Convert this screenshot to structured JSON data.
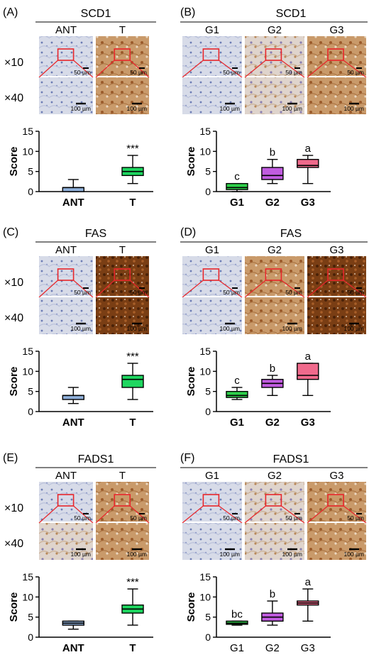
{
  "scale_bar_small": "50 µm",
  "scale_bar_large": "100 µm",
  "row_labels": [
    "×10",
    "×40"
  ],
  "y_axis_label": "Score",
  "colors": {
    "ant": "#8fb0da",
    "t": "#1ed760",
    "g1": "#2fd24b",
    "g2": "#c15ce0",
    "g3": "#f06a8c",
    "roi": "#e8262b",
    "hem": "#c9d1e6",
    "dab": "#b5713a"
  },
  "panels": [
    {
      "label": "(A)",
      "title": "SCD1",
      "groups": [
        "ANT",
        "T"
      ],
      "tiles": [
        [
          "hem",
          "dab"
        ],
        [
          "hem",
          "dab"
        ]
      ],
      "chart_data": {
        "type": "box",
        "categories": [
          "ANT",
          "T"
        ],
        "ylim": [
          0,
          15
        ],
        "yticks": [
          0,
          5,
          10,
          15
        ],
        "ylabel": "Score",
        "boxes": [
          {
            "min": 0,
            "q1": 0,
            "median": 1,
            "q3": 1,
            "max": 3,
            "color": "#8fb0da"
          },
          {
            "min": 2,
            "q1": 4,
            "median": 5,
            "q3": 6,
            "max": 9,
            "color": "#1ed760"
          }
        ],
        "annotations": [
          "",
          "***"
        ]
      }
    },
    {
      "label": "(B)",
      "title": "SCD1",
      "groups": [
        "G1",
        "G2",
        "G3"
      ],
      "tiles": [
        [
          "hem",
          "mix",
          "dab"
        ],
        [
          "hem",
          "mix",
          "dab"
        ]
      ],
      "chart_data": {
        "type": "box",
        "categories": [
          "G1",
          "G2",
          "G3"
        ],
        "ylim": [
          0,
          15
        ],
        "yticks": [
          0,
          5,
          10,
          15
        ],
        "ylabel": "Score",
        "boxes": [
          {
            "min": 0,
            "q1": 0.5,
            "median": 1,
            "q3": 2,
            "max": 2,
            "color": "#2fd24b"
          },
          {
            "min": 2,
            "q1": 3,
            "median": 4,
            "q3": 6,
            "max": 8,
            "color": "#c15ce0"
          },
          {
            "min": 2,
            "q1": 6,
            "median": 6.5,
            "q3": 8,
            "max": 9,
            "color": "#f06a8c"
          }
        ],
        "annotations": [
          "c",
          "b",
          "a"
        ]
      }
    },
    {
      "label": "(C)",
      "title": "FAS",
      "groups": [
        "ANT",
        "T"
      ],
      "tiles": [
        [
          "hem",
          "dabdark"
        ],
        [
          "hem",
          "dabdark"
        ]
      ],
      "chart_data": {
        "type": "box",
        "categories": [
          "ANT",
          "T"
        ],
        "ylim": [
          0,
          15
        ],
        "yticks": [
          0,
          5,
          10,
          15
        ],
        "ylabel": "Score",
        "boxes": [
          {
            "min": 2,
            "q1": 3,
            "median": 4,
            "q3": 4,
            "max": 6,
            "color": "#8fb0da"
          },
          {
            "min": 3,
            "q1": 6,
            "median": 8,
            "q3": 9,
            "max": 12,
            "color": "#1ed760"
          }
        ],
        "annotations": [
          "",
          "***"
        ]
      }
    },
    {
      "label": "(D)",
      "title": "FAS",
      "groups": [
        "G1",
        "G2",
        "G3"
      ],
      "tiles": [
        [
          "hem",
          "dab",
          "dabdark"
        ],
        [
          "hem",
          "dab",
          "dabdark"
        ]
      ],
      "chart_data": {
        "type": "box",
        "categories": [
          "G1",
          "G2",
          "G3"
        ],
        "ylim": [
          0,
          15
        ],
        "yticks": [
          0,
          5,
          10,
          15
        ],
        "ylabel": "Score",
        "boxes": [
          {
            "min": 3,
            "q1": 3.5,
            "median": 4,
            "q3": 5,
            "max": 6,
            "color": "#2fd24b"
          },
          {
            "min": 4,
            "q1": 6,
            "median": 7,
            "q3": 8,
            "max": 9,
            "color": "#c15ce0"
          },
          {
            "min": 4,
            "q1": 8,
            "median": 9,
            "q3": 12,
            "max": 12,
            "color": "#f06a8c"
          }
        ],
        "annotations": [
          "c",
          "b",
          "a"
        ]
      }
    },
    {
      "label": "(E)",
      "title": "FADS1",
      "groups": [
        "ANT",
        "T"
      ],
      "tiles": [
        [
          "hem",
          "dab"
        ],
        [
          "mix",
          "dab"
        ]
      ],
      "chart_data": {
        "type": "box",
        "categories": [
          "ANT",
          "T"
        ],
        "ylim": [
          0,
          15
        ],
        "yticks": [
          0,
          5,
          10,
          15
        ],
        "ylabel": "Score",
        "boxes": [
          {
            "min": 2,
            "q1": 3,
            "median": 3.5,
            "q3": 4,
            "max": 4,
            "color": "#8fb0da"
          },
          {
            "min": 3,
            "q1": 6,
            "median": 7,
            "q3": 8,
            "max": 12,
            "color": "#1ed760"
          }
        ],
        "annotations": [
          "",
          "***"
        ]
      }
    },
    {
      "label": "(F)",
      "title": "FADS1",
      "groups": [
        "G1",
        "G2",
        "G3"
      ],
      "tiles": [
        [
          "hem",
          "mix",
          "dab"
        ],
        [
          "hem",
          "mix",
          "dab"
        ]
      ],
      "chart_data": {
        "type": "box",
        "categories": [
          "G1",
          "G2",
          "G3"
        ],
        "ylim": [
          0,
          15
        ],
        "yticks": [
          0,
          5,
          10,
          15
        ],
        "ylabel": "Score",
        "boxes": [
          {
            "min": 3,
            "q1": 3.2,
            "median": 3.5,
            "q3": 4,
            "max": 4,
            "color": "#2fd24b"
          },
          {
            "min": 3,
            "q1": 4,
            "median": 5,
            "q3": 6,
            "max": 9,
            "color": "#c15ce0"
          },
          {
            "min": 4,
            "q1": 8,
            "median": 8.5,
            "q3": 9,
            "max": 12,
            "color": "#f06a8c"
          }
        ],
        "annotations": [
          "bc",
          "b",
          "a"
        ]
      }
    }
  ]
}
